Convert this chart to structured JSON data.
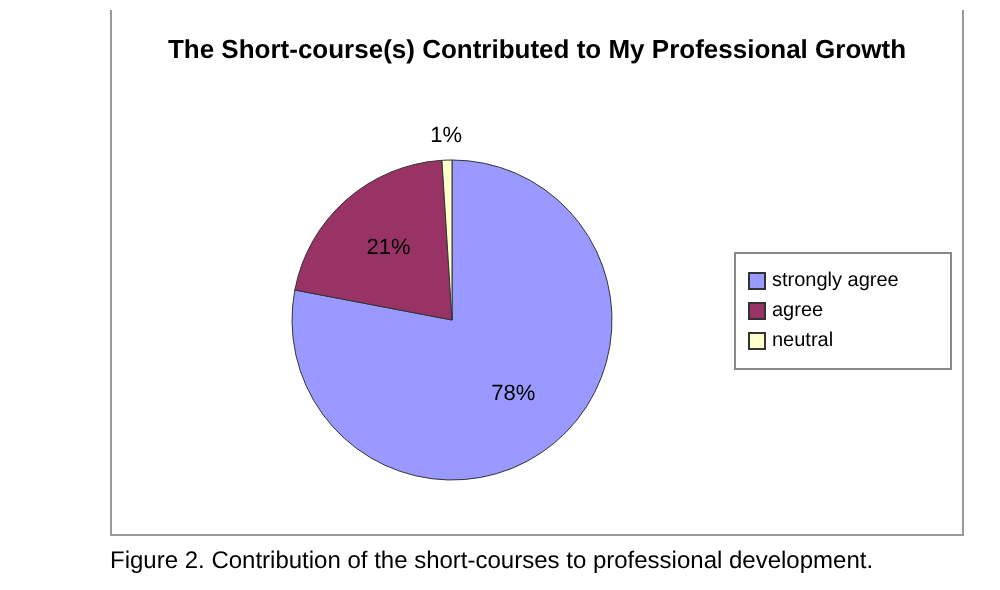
{
  "chart_data": {
    "type": "pie",
    "title": "The Short-course(s) Contributed to My Professional Growth",
    "categories": [
      "strongly agree",
      "agree",
      "neutral"
    ],
    "values": [
      78,
      21,
      1
    ],
    "colors": [
      "#9999ff",
      "#993366",
      "#ffffcc"
    ],
    "value_labels": [
      "78%",
      "21%",
      "1%"
    ],
    "legend": "right",
    "annotations": [
      "Figure 2. Contribution of the short-courses to professional development."
    ]
  }
}
